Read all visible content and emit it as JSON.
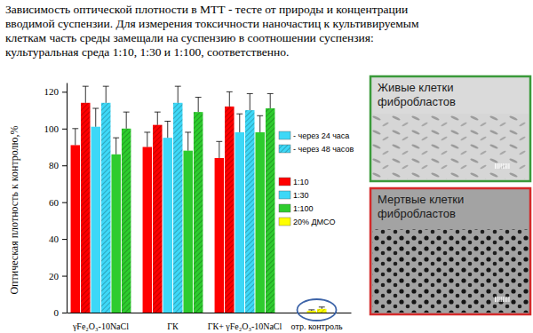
{
  "chart_data": {
    "type": "bar",
    "title": [
      "Зависимость оптической плотности в МТТ - тесте от природы и концентрации",
      "вводимой суспензии. Для измерения токсичности наночастиц к культивируемым",
      "клеткам часть среды замещали на суспензию в соотношении суспензия:",
      "культуральная среда 1:10, 1:30 и 1:100, соответственно."
    ],
    "y_label": "Оптическая плотность к контролю,%",
    "categories": [
      "γFe₂O₃-10NaCl",
      "ГК",
      "ГК+ γFe₂O₃-10NaCl",
      "отр. контроль"
    ],
    "periods": [
      "- через 24 часа",
      "- через 48 часов"
    ],
    "series": [
      {
        "name": "1:10",
        "color": "#ff0000",
        "values": [
          [
            91,
            114
          ],
          [
            90,
            102
          ],
          [
            84,
            112
          ],
          [
            null,
            null
          ]
        ],
        "errors": [
          [
            9,
            9
          ],
          [
            8,
            7
          ],
          [
            9,
            8
          ],
          [
            null,
            null
          ]
        ]
      },
      {
        "name": "1:30",
        "color": "#3dd8f7",
        "values": [
          [
            101,
            114
          ],
          [
            95,
            114
          ],
          [
            98,
            110
          ],
          [
            null,
            null
          ]
        ],
        "errors": [
          [
            10,
            9
          ],
          [
            9,
            9
          ],
          [
            10,
            9
          ],
          [
            null,
            null
          ]
        ]
      },
      {
        "name": "1:100",
        "color": "#2ecc2e",
        "values": [
          [
            86,
            100
          ],
          [
            88,
            109
          ],
          [
            98,
            111
          ],
          [
            null,
            null
          ]
        ],
        "errors": [
          [
            9,
            9
          ],
          [
            10,
            8
          ],
          [
            9,
            8
          ],
          [
            null,
            null
          ]
        ]
      },
      {
        "name": "20% ДМСО",
        "color": "#ffff00",
        "values": [
          [
            null,
            null
          ],
          [
            null,
            null
          ],
          [
            null,
            null
          ],
          [
            1,
            2
          ]
        ],
        "errors": [
          [
            null,
            null
          ],
          [
            null,
            null
          ],
          [
            null,
            null
          ],
          [
            0.5,
            1
          ]
        ]
      }
    ],
    "ylim": [
      0,
      125
    ],
    "yticks": [
      0,
      20,
      40,
      60,
      80,
      100,
      120
    ],
    "grid": false,
    "legend": "right"
  },
  "panels": [
    {
      "label": [
        "Живые клетки",
        "фибробластов"
      ],
      "color": "#3a9a3a"
    },
    {
      "label": [
        "Мертвые клетки",
        "фибробластов"
      ],
      "color": "#d42a2a"
    }
  ]
}
